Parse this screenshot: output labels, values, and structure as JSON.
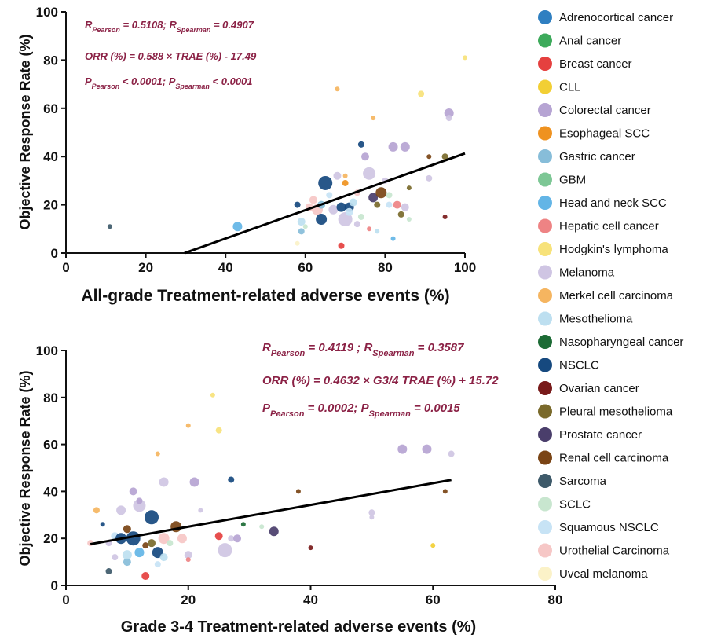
{
  "colors": {
    "annotation": "#8b2246",
    "axis": "#111111",
    "fit_line": "#000000"
  },
  "legend": {
    "items": [
      {
        "label": "Adrenocortical cancer",
        "color": "#2f7fc1"
      },
      {
        "label": "Anal cancer",
        "color": "#3daa5b"
      },
      {
        "label": "Breast cancer",
        "color": "#e5403f"
      },
      {
        "label": "CLL",
        "color": "#f2cf34"
      },
      {
        "label": "Colorectal cancer",
        "color": "#b6a4d3"
      },
      {
        "label": "Esophageal  SCC",
        "color": "#ef9220"
      },
      {
        "label": "Gastric cancer",
        "color": "#87bdd9"
      },
      {
        "label": "GBM",
        "color": "#7dc795"
      },
      {
        "label": "Head and neck SCC",
        "color": "#63b5e6"
      },
      {
        "label": "Hepatic cell cancer",
        "color": "#ee8384"
      },
      {
        "label": "Hodgkin's lymphoma",
        "color": "#f7e27a"
      },
      {
        "label": "Melanoma",
        "color": "#cfc5e3"
      },
      {
        "label": "Merkel cell carcinoma",
        "color": "#f5b560"
      },
      {
        "label": "Mesothelioma",
        "color": "#bddff0"
      },
      {
        "label": "Nasopharyngeal  cancer",
        "color": "#1c6b35"
      },
      {
        "label": "NSCLC",
        "color": "#16497f"
      },
      {
        "label": "Ovarian cancer",
        "color": "#781a1a"
      },
      {
        "label": "Pleural mesothelioma",
        "color": "#7a6a2b"
      },
      {
        "label": "Prostate cancer",
        "color": "#4a3e6b"
      },
      {
        "label": "Renal cell carcinoma",
        "color": "#7a4415"
      },
      {
        "label": "Sarcoma",
        "color": "#3e5a6a"
      },
      {
        "label": "SCLC",
        "color": "#c8e6cf"
      },
      {
        "label": "Squamous NSCLC",
        "color": "#c7e3f5"
      },
      {
        "label": "Urothelial Carcinoma",
        "color": "#f6c7c6"
      },
      {
        "label": "Uveal melanoma",
        "color": "#fbf2c8"
      }
    ]
  },
  "chart_data": [
    {
      "type": "scatter",
      "xlabel": "All-grade Treatment-related adverse events (%)",
      "ylabel": "Objective Response  Rate (%)",
      "xlim": [
        0,
        100
      ],
      "ylim": [
        0,
        100
      ],
      "xticks": [
        "0",
        "20",
        "40",
        "60",
        "80",
        "100"
      ],
      "yticks": [
        "0",
        "20",
        "40",
        "60",
        "80",
        "100"
      ],
      "annotations": [
        {
          "parts": [
            {
              "t": "R"
            },
            {
              "t": "Pearson",
              "sub": true
            },
            {
              "t": " = 0.5108; R"
            },
            {
              "t": "Spearman",
              "sub": true
            },
            {
              "t": " = 0.4907"
            }
          ]
        },
        {
          "parts": [
            {
              "t": "ORR (%) =  0.588 × TRAE (%) - 17.49"
            }
          ]
        },
        {
          "parts": [
            {
              "t": "P"
            },
            {
              "t": "Pearson",
              "sub": true
            },
            {
              "t": " < 0.0001; P"
            },
            {
              "t": "Spearman",
              "sub": true
            },
            {
              "t": " < 0.0001"
            }
          ]
        }
      ],
      "fit": {
        "slope": 0.588,
        "intercept": -17.49,
        "x_range": [
          29.7,
          100
        ]
      },
      "points": [
        {
          "x": 11,
          "y": 11,
          "r": 3,
          "c": "Sarcoma"
        },
        {
          "x": 43,
          "y": 11,
          "r": 6,
          "c": "Head and neck SCC"
        },
        {
          "x": 58,
          "y": 20,
          "r": 4,
          "c": "NSCLC"
        },
        {
          "x": 59,
          "y": 13,
          "r": 5,
          "c": "Mesothelioma"
        },
        {
          "x": 59,
          "y": 9,
          "r": 4,
          "c": "Gastric cancer"
        },
        {
          "x": 60,
          "y": 11,
          "r": 3,
          "c": "SCLC"
        },
        {
          "x": 61,
          "y": 19,
          "r": 5,
          "c": "Urothelial Carcinoma"
        },
        {
          "x": 58,
          "y": 4,
          "r": 3,
          "c": "Uveal melanoma"
        },
        {
          "x": 62,
          "y": 22,
          "r": 5,
          "c": "Urothelial Carcinoma"
        },
        {
          "x": 63,
          "y": 18,
          "r": 7,
          "c": "Urothelial Carcinoma"
        },
        {
          "x": 64,
          "y": 14,
          "r": 7,
          "c": "NSCLC"
        },
        {
          "x": 64,
          "y": 20,
          "r": 5,
          "c": "Gastric cancer"
        },
        {
          "x": 65,
          "y": 29,
          "r": 9,
          "c": "NSCLC"
        },
        {
          "x": 66,
          "y": 24,
          "r": 4,
          "c": "Squamous NSCLC"
        },
        {
          "x": 67,
          "y": 18,
          "r": 6,
          "c": "Melanoma"
        },
        {
          "x": 68,
          "y": 32,
          "r": 5,
          "c": "Melanoma"
        },
        {
          "x": 68,
          "y": 68,
          "r": 3,
          "c": "Merkel cell carcinoma"
        },
        {
          "x": 69,
          "y": 3,
          "r": 4,
          "c": "Breast cancer"
        },
        {
          "x": 69,
          "y": 19,
          "r": 6,
          "c": "NSCLC"
        },
        {
          "x": 70,
          "y": 14,
          "r": 9,
          "c": "Melanoma"
        },
        {
          "x": 70,
          "y": 29,
          "r": 4,
          "c": "Esophageal  SCC"
        },
        {
          "x": 70,
          "y": 32,
          "r": 3,
          "c": "Merkel cell carcinoma"
        },
        {
          "x": 71,
          "y": 19,
          "r": 6,
          "c": "NSCLC"
        },
        {
          "x": 71,
          "y": 17,
          "r": 5,
          "c": "Squamous NSCLC"
        },
        {
          "x": 72,
          "y": 21,
          "r": 5,
          "c": "Mesothelioma"
        },
        {
          "x": 73,
          "y": 25,
          "r": 4,
          "c": "Urothelial Carcinoma"
        },
        {
          "x": 73,
          "y": 12,
          "r": 4,
          "c": "Melanoma"
        },
        {
          "x": 74,
          "y": 45,
          "r": 4,
          "c": "NSCLC"
        },
        {
          "x": 74,
          "y": 15,
          "r": 4,
          "c": "SCLC"
        },
        {
          "x": 75,
          "y": 40,
          "r": 5,
          "c": "Colorectal cancer"
        },
        {
          "x": 76,
          "y": 33,
          "r": 8,
          "c": "Melanoma"
        },
        {
          "x": 76,
          "y": 10,
          "r": 3,
          "c": "Hepatic cell cancer"
        },
        {
          "x": 77,
          "y": 23,
          "r": 6,
          "c": "Prostate cancer"
        },
        {
          "x": 77,
          "y": 56,
          "r": 3,
          "c": "Merkel cell carcinoma"
        },
        {
          "x": 78,
          "y": 20,
          "r": 4,
          "c": "Pleural mesothelioma"
        },
        {
          "x": 78,
          "y": 9,
          "r": 3,
          "c": "Mesothelioma"
        },
        {
          "x": 79,
          "y": 25,
          "r": 7,
          "c": "Renal cell carcinoma"
        },
        {
          "x": 80,
          "y": 30,
          "r": 4,
          "c": "Melanoma"
        },
        {
          "x": 81,
          "y": 20,
          "r": 4,
          "c": "Squamous NSCLC"
        },
        {
          "x": 81,
          "y": 24,
          "r": 4,
          "c": "SCLC"
        },
        {
          "x": 82,
          "y": 44,
          "r": 6,
          "c": "Colorectal cancer"
        },
        {
          "x": 82,
          "y": 6,
          "r": 3,
          "c": "Head and neck SCC"
        },
        {
          "x": 83,
          "y": 20,
          "r": 5,
          "c": "Hepatic cell cancer"
        },
        {
          "x": 84,
          "y": 16,
          "r": 4,
          "c": "Pleural mesothelioma"
        },
        {
          "x": 85,
          "y": 44,
          "r": 6,
          "c": "Colorectal cancer"
        },
        {
          "x": 85,
          "y": 19,
          "r": 5,
          "c": "Melanoma"
        },
        {
          "x": 86,
          "y": 27,
          "r": 3,
          "c": "Pleural mesothelioma"
        },
        {
          "x": 86,
          "y": 14,
          "r": 3,
          "c": "SCLC"
        },
        {
          "x": 89,
          "y": 66,
          "r": 4,
          "c": "Hodgkin's lymphoma"
        },
        {
          "x": 91,
          "y": 40,
          "r": 3,
          "c": "Renal cell carcinoma"
        },
        {
          "x": 91,
          "y": 31,
          "r": 4,
          "c": "Melanoma"
        },
        {
          "x": 95,
          "y": 40,
          "r": 4,
          "c": "Pleural mesothelioma"
        },
        {
          "x": 95,
          "y": 15,
          "r": 3,
          "c": "Ovarian cancer"
        },
        {
          "x": 96,
          "y": 58,
          "r": 6,
          "c": "Colorectal cancer"
        },
        {
          "x": 96,
          "y": 56,
          "r": 4,
          "c": "Melanoma"
        },
        {
          "x": 100,
          "y": 81,
          "r": 3,
          "c": "Hodgkin's lymphoma"
        }
      ]
    },
    {
      "type": "scatter",
      "xlabel": "Grade 3-4 Treatment-related adverse events (%)",
      "ylabel": "Objective Response  Rate (%)",
      "xlim": [
        0,
        80
      ],
      "ylim": [
        0,
        100
      ],
      "xticks": [
        "0",
        "20",
        "40",
        "60",
        "80"
      ],
      "yticks": [
        "0",
        "20",
        "40",
        "60",
        "80",
        "100"
      ],
      "annotations": [
        {
          "parts": [
            {
              "t": "R"
            },
            {
              "t": "Pearson",
              "sub": true
            },
            {
              "t": " = 0.4119 ; R"
            },
            {
              "t": "Spearman",
              "sub": true
            },
            {
              "t": " = 0.3587"
            }
          ]
        },
        {
          "parts": [
            {
              "t": "ORR (%) =  0.4632 × G3/4 TRAE (%) + 15.72"
            }
          ]
        },
        {
          "parts": [
            {
              "t": "P"
            },
            {
              "t": "Pearson",
              "sub": true
            },
            {
              "t": " = 0.0002; P"
            },
            {
              "t": "Spearman",
              "sub": true
            },
            {
              "t": " = 0.0015"
            }
          ]
        }
      ],
      "fit": {
        "slope": 0.4632,
        "intercept": 15.72,
        "x_range": [
          4,
          63
        ]
      },
      "points": [
        {
          "x": 4,
          "y": 18,
          "r": 4,
          "c": "Urothelial Carcinoma"
        },
        {
          "x": 5,
          "y": 32,
          "r": 4,
          "c": "Merkel cell carcinoma"
        },
        {
          "x": 6,
          "y": 26,
          "r": 3,
          "c": "NSCLC"
        },
        {
          "x": 7,
          "y": 6,
          "r": 4,
          "c": "Sarcoma"
        },
        {
          "x": 7,
          "y": 18,
          "r": 4,
          "c": "Melanoma"
        },
        {
          "x": 8,
          "y": 21,
          "r": 5,
          "c": "Squamous NSCLC"
        },
        {
          "x": 8,
          "y": 12,
          "r": 4,
          "c": "Melanoma"
        },
        {
          "x": 9,
          "y": 32,
          "r": 6,
          "c": "Melanoma"
        },
        {
          "x": 9,
          "y": 20,
          "r": 7,
          "c": "NSCLC"
        },
        {
          "x": 10,
          "y": 24,
          "r": 5,
          "c": "Renal cell carcinoma"
        },
        {
          "x": 10,
          "y": 10,
          "r": 5,
          "c": "Gastric cancer"
        },
        {
          "x": 10,
          "y": 13,
          "r": 6,
          "c": "Mesothelioma"
        },
        {
          "x": 11,
          "y": 40,
          "r": 5,
          "c": "Colorectal cancer"
        },
        {
          "x": 11,
          "y": 20,
          "r": 9,
          "c": "NSCLC"
        },
        {
          "x": 12,
          "y": 34,
          "r": 8,
          "c": "Melanoma"
        },
        {
          "x": 12,
          "y": 36,
          "r": 4,
          "c": "Colorectal cancer"
        },
        {
          "x": 12,
          "y": 14,
          "r": 6,
          "c": "Head and neck SCC"
        },
        {
          "x": 13,
          "y": 4,
          "r": 5,
          "c": "Breast cancer"
        },
        {
          "x": 13,
          "y": 17,
          "r": 4,
          "c": "Renal cell carcinoma"
        },
        {
          "x": 14,
          "y": 29,
          "r": 9,
          "c": "NSCLC"
        },
        {
          "x": 14,
          "y": 18,
          "r": 5,
          "c": "Pleural mesothelioma"
        },
        {
          "x": 15,
          "y": 56,
          "r": 3,
          "c": "Merkel cell carcinoma"
        },
        {
          "x": 15,
          "y": 14,
          "r": 7,
          "c": "NSCLC"
        },
        {
          "x": 15,
          "y": 9,
          "r": 4,
          "c": "Squamous NSCLC"
        },
        {
          "x": 16,
          "y": 44,
          "r": 6,
          "c": "Melanoma"
        },
        {
          "x": 16,
          "y": 20,
          "r": 7,
          "c": "Urothelial Carcinoma"
        },
        {
          "x": 16,
          "y": 12,
          "r": 5,
          "c": "Mesothelioma"
        },
        {
          "x": 17,
          "y": 18,
          "r": 4,
          "c": "SCLC"
        },
        {
          "x": 18,
          "y": 25,
          "r": 7,
          "c": "Renal cell carcinoma"
        },
        {
          "x": 19,
          "y": 20,
          "r": 6,
          "c": "Urothelial Carcinoma"
        },
        {
          "x": 20,
          "y": 68,
          "r": 3,
          "c": "Merkel cell carcinoma"
        },
        {
          "x": 20,
          "y": 13,
          "r": 5,
          "c": "Melanoma"
        },
        {
          "x": 20,
          "y": 11,
          "r": 3,
          "c": "Hepatic cell cancer"
        },
        {
          "x": 21,
          "y": 44,
          "r": 6,
          "c": "Colorectal cancer"
        },
        {
          "x": 22,
          "y": 32,
          "r": 3,
          "c": "Melanoma"
        },
        {
          "x": 24,
          "y": 81,
          "r": 3,
          "c": "Hodgkin's lymphoma"
        },
        {
          "x": 25,
          "y": 66,
          "r": 4,
          "c": "Hodgkin's lymphoma"
        },
        {
          "x": 25,
          "y": 21,
          "r": 5,
          "c": "Breast cancer"
        },
        {
          "x": 26,
          "y": 15,
          "r": 9,
          "c": "Melanoma"
        },
        {
          "x": 27,
          "y": 45,
          "r": 4,
          "c": "NSCLC"
        },
        {
          "x": 27,
          "y": 20,
          "r": 4,
          "c": "Melanoma"
        },
        {
          "x": 28,
          "y": 20,
          "r": 5,
          "c": "Colorectal cancer"
        },
        {
          "x": 29,
          "y": 26,
          "r": 3,
          "c": "Nasopharyngeal  cancer"
        },
        {
          "x": 32,
          "y": 25,
          "r": 3,
          "c": "SCLC"
        },
        {
          "x": 34,
          "y": 23,
          "r": 6,
          "c": "Prostate cancer"
        },
        {
          "x": 38,
          "y": 40,
          "r": 3,
          "c": "Renal cell carcinoma"
        },
        {
          "x": 40,
          "y": 16,
          "r": 3,
          "c": "Ovarian cancer"
        },
        {
          "x": 50,
          "y": 31,
          "r": 4,
          "c": "Melanoma"
        },
        {
          "x": 50,
          "y": 29,
          "r": 3,
          "c": "Melanoma"
        },
        {
          "x": 55,
          "y": 58,
          "r": 6,
          "c": "Colorectal cancer"
        },
        {
          "x": 59,
          "y": 58,
          "r": 6,
          "c": "Colorectal cancer"
        },
        {
          "x": 60,
          "y": 17,
          "r": 3,
          "c": "CLL"
        },
        {
          "x": 62,
          "y": 40,
          "r": 3,
          "c": "Renal cell carcinoma"
        },
        {
          "x": 63,
          "y": 56,
          "r": 4,
          "c": "Melanoma"
        }
      ]
    }
  ]
}
